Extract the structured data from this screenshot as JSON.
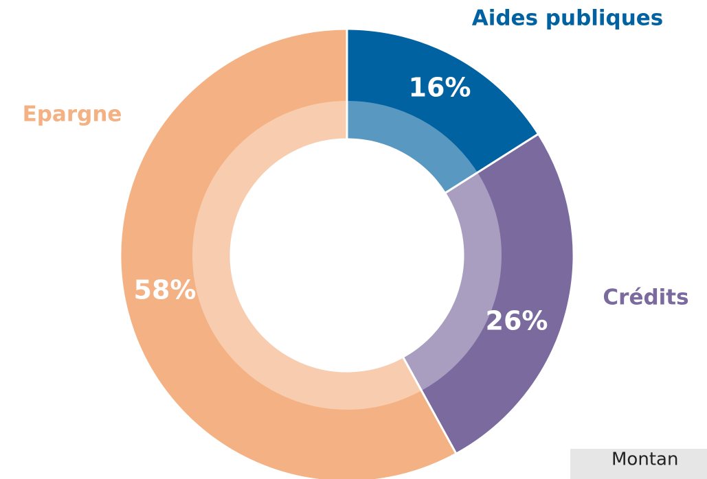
{
  "chart_data": {
    "type": "donut",
    "categories": [
      "Aides publiques",
      "Crédits",
      "Epargne"
    ],
    "values": [
      16,
      26,
      58
    ],
    "value_labels": [
      "16%",
      "26%",
      "58%"
    ],
    "colors": [
      "#0062a0",
      "#7b6a9e",
      "#f4b183"
    ]
  },
  "note_box": {
    "text": "Montan"
  }
}
